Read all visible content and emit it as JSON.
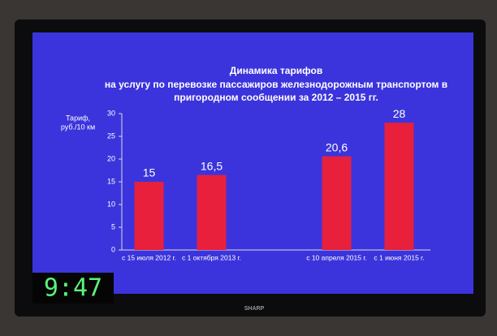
{
  "chart_data": {
    "type": "bar",
    "title": [
      "Динамика тарифов",
      "на услугу по перевозке пассажиров железнодорожным транспортом в",
      "пригородном сообщении за 2012 – 2015 гг."
    ],
    "y_label": [
      "Тариф,",
      "руб./10 км"
    ],
    "categories": [
      "с 15 июля 2012 г.",
      "с 1 октября 2013 г.",
      null,
      "с 10 апреля 2015 г.",
      "с 1 июня 2015 г."
    ],
    "values": [
      15,
      16.5,
      null,
      20.6,
      28
    ],
    "value_labels": [
      "15",
      "16,5",
      null,
      "20,6",
      "28"
    ],
    "color": "#e8203c",
    "ylim": [
      0,
      30
    ],
    "yticks": [
      0,
      5,
      10,
      15,
      20,
      25,
      30
    ],
    "grid": false
  },
  "clock": "9:47",
  "brand": "SHARP"
}
